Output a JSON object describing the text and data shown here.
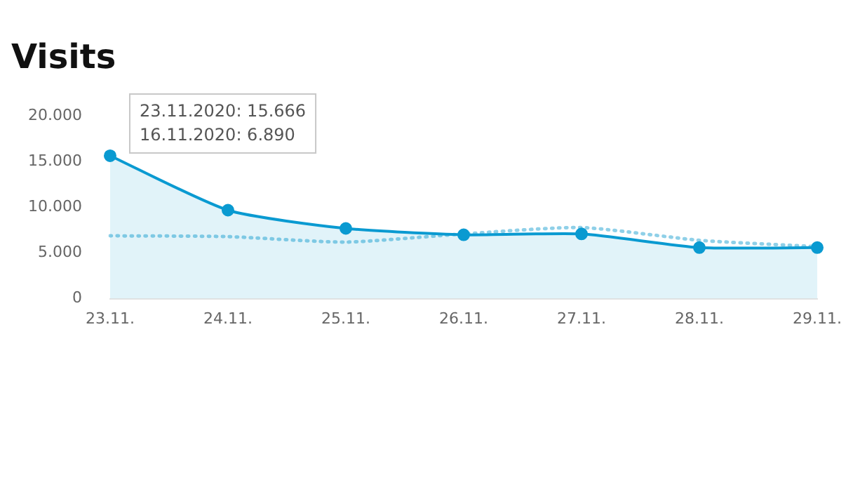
{
  "chart_data": {
    "type": "line",
    "title": "Visits",
    "categories": [
      "23.11.",
      "24.11.",
      "25.11.",
      "26.11.",
      "27.11.",
      "28.11.",
      "29.11."
    ],
    "series": [
      {
        "type": "area",
        "color": "#0a9ad1",
        "marker": "circle",
        "line_style": "solid",
        "values": [
          15666,
          9700,
          7700,
          7000,
          7100,
          5600,
          5600
        ]
      },
      {
        "type": "line",
        "color": "#8fd0e8",
        "marker": "none",
        "line_style": "dotted",
        "values": [
          6890,
          6800,
          6200,
          7100,
          7800,
          6400,
          5700
        ]
      }
    ],
    "ylim": [
      0,
      20000
    ],
    "yticks": [
      {
        "value": 0,
        "label": "0"
      },
      {
        "value": 5000,
        "label": "5.000"
      },
      {
        "value": 10000,
        "label": "10.000"
      },
      {
        "value": 15000,
        "label": "15.000"
      },
      {
        "value": 20000,
        "label": "20.000"
      }
    ],
    "grid": false,
    "legend": false,
    "annotations": [
      "23.11.2020: 15.666",
      "16.11.2020: 6.890"
    ]
  }
}
